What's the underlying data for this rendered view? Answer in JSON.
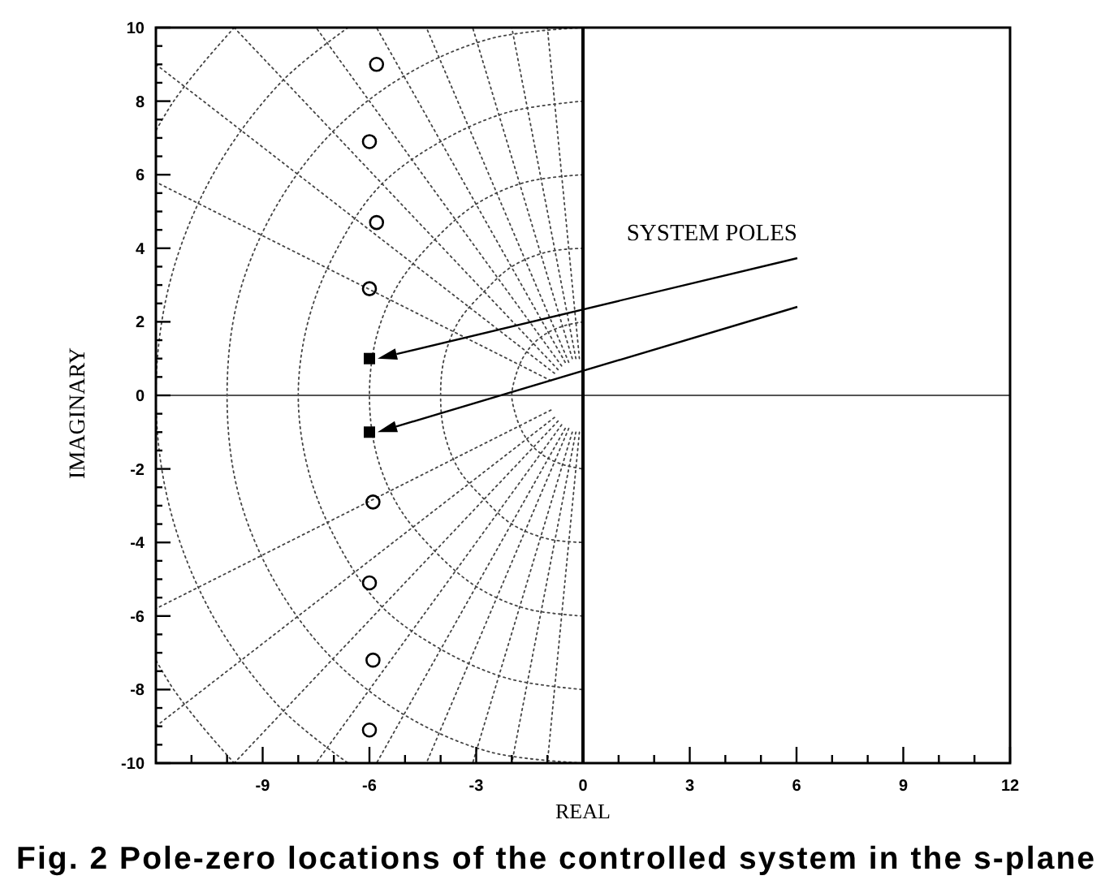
{
  "chart_data": {
    "type": "scatter",
    "xlabel": "REAL",
    "ylabel": "IMAGINARY",
    "annotations": [
      "Fig. 2 Pole-zero locations of the controlled system in the s-plane"
    ],
    "line_style": "dotted",
    "series": [
      {
        "type": "line",
        "color": "#444444",
        "x": [
          0,
          -0.5,
          -1.0,
          -1.4,
          -1.7,
          -1.9,
          -2,
          -1.9,
          -1.7,
          -1.4,
          -1.0,
          -0.5,
          0
        ],
        "values": [
          2,
          1.9,
          1.7,
          1.4,
          1.0,
          0.5,
          0,
          -0.5,
          -1.0,
          -1.4,
          -1.7,
          -1.9,
          -2
        ]
      },
      {
        "type": "line",
        "color": "#444444",
        "x": [
          0,
          -1.0,
          -2.0,
          -2.8,
          -3.5,
          -3.9,
          -4,
          -3.9,
          -3.5,
          -2.8,
          -2.0,
          -1.0,
          0
        ],
        "values": [
          4,
          3.9,
          3.5,
          2.8,
          2.0,
          1.0,
          0,
          -1.0,
          -2.0,
          -2.8,
          -3.5,
          -3.9,
          -4
        ]
      },
      {
        "type": "line",
        "color": "#444444",
        "x": [
          0,
          -1.6,
          -3.0,
          -4.2,
          -5.2,
          -5.8,
          -6,
          -5.8,
          -5.2,
          -4.2,
          -3.0,
          -1.6,
          0
        ],
        "values": [
          6,
          5.8,
          5.2,
          4.2,
          3.0,
          1.6,
          0,
          -1.6,
          -3.0,
          -4.2,
          -5.2,
          -5.8,
          -6
        ]
      },
      {
        "type": "line",
        "color": "#444444",
        "x": [
          0,
          -2.1,
          -4.0,
          -5.7,
          -6.9,
          -7.7,
          -8,
          -7.7,
          -6.9,
          -5.7,
          -4.0,
          -2.1,
          0
        ],
        "values": [
          8,
          7.7,
          6.9,
          5.7,
          4.0,
          2.1,
          0,
          -2.1,
          -4.0,
          -5.7,
          -6.9,
          -7.7,
          -8
        ]
      },
      {
        "type": "line",
        "color": "#444444",
        "x": [
          0,
          -2.6,
          -5.0,
          -7.1,
          -8.7,
          -9.7,
          -10,
          -9.7,
          -8.7,
          -7.1,
          -5.0,
          -2.6,
          0
        ],
        "values": [
          10,
          9.7,
          8.7,
          7.1,
          5.0,
          2.6,
          0,
          -2.6,
          -5.0,
          -7.1,
          -8.7,
          -9.7,
          -10
        ]
      },
      {
        "type": "line",
        "color": "#444444",
        "x": [
          -6.6,
          -8.5,
          -10.4,
          -11.6,
          -12,
          -11.6,
          -10.4,
          -8.5,
          -6.6
        ],
        "values": [
          10,
          8.5,
          6.0,
          3.1,
          0,
          -3.1,
          -6.0,
          -8.5,
          -10
        ]
      },
      {
        "type": "line",
        "color": "#444444",
        "x": [
          -9.8,
          -10.7,
          -11.5,
          -12
        ],
        "values": [
          10,
          9.0,
          8.0,
          7.2
        ]
      },
      {
        "type": "line",
        "color": "#444444",
        "x": [
          -9.8,
          -10.7,
          -11.5,
          -12
        ],
        "values": [
          -10,
          -9.0,
          -8.0,
          -7.2
        ]
      },
      {
        "type": "line",
        "color": "#444444",
        "x": [
          -0.1,
          -1.0
        ],
        "values": [
          1.0,
          10
        ]
      },
      {
        "type": "line",
        "color": "#444444",
        "x": [
          -0.2,
          -2.0
        ],
        "values": [
          1.0,
          10
        ]
      },
      {
        "type": "line",
        "color": "#444444",
        "x": [
          -0.3,
          -3.1
        ],
        "values": [
          1.0,
          10
        ]
      },
      {
        "type": "line",
        "color": "#444444",
        "x": [
          -0.4,
          -4.4
        ],
        "values": [
          0.9,
          10
        ]
      },
      {
        "type": "line",
        "color": "#444444",
        "x": [
          -0.5,
          -5.8
        ],
        "values": [
          0.9,
          10
        ]
      },
      {
        "type": "line",
        "color": "#444444",
        "x": [
          -0.6,
          -7.5
        ],
        "values": [
          0.8,
          10
        ]
      },
      {
        "type": "line",
        "color": "#444444",
        "x": [
          -0.7,
          -9.8
        ],
        "values": [
          0.7,
          10
        ]
      },
      {
        "type": "line",
        "color": "#444444",
        "x": [
          -0.8,
          -12
        ],
        "values": [
          0.6,
          9.0
        ]
      },
      {
        "type": "line",
        "color": "#444444",
        "x": [
          -0.9,
          -12
        ],
        "values": [
          0.4,
          5.8
        ]
      },
      {
        "type": "line",
        "color": "#444444",
        "x": [
          -0.1,
          -1.0
        ],
        "values": [
          -1.0,
          -10
        ]
      },
      {
        "type": "line",
        "color": "#444444",
        "x": [
          -0.2,
          -2.0
        ],
        "values": [
          -1.0,
          -10
        ]
      },
      {
        "type": "line",
        "color": "#444444",
        "x": [
          -0.3,
          -3.1
        ],
        "values": [
          -1.0,
          -10
        ]
      },
      {
        "type": "line",
        "color": "#444444",
        "x": [
          -0.4,
          -4.4
        ],
        "values": [
          -0.9,
          -10
        ]
      },
      {
        "type": "line",
        "color": "#444444",
        "x": [
          -0.5,
          -5.8
        ],
        "values": [
          -0.9,
          -10
        ]
      },
      {
        "type": "line",
        "color": "#444444",
        "x": [
          -0.6,
          -7.5
        ],
        "values": [
          -0.8,
          -10
        ]
      },
      {
        "type": "line",
        "color": "#444444",
        "x": [
          -0.7,
          -9.8
        ],
        "values": [
          -0.7,
          -10
        ]
      },
      {
        "type": "line",
        "color": "#444444",
        "x": [
          -0.8,
          -12
        ],
        "values": [
          -0.6,
          -9.0
        ]
      },
      {
        "type": "line",
        "color": "#444444",
        "x": [
          -0.9,
          -12
        ],
        "values": [
          -0.4,
          -5.8
        ]
      },
      {
        "marker": "circle",
        "color": "#000000",
        "x": [
          -5.8,
          -6.0,
          -5.8,
          -6.0,
          -5.9,
          -6.0,
          -5.9,
          -6.0
        ],
        "values": [
          9.0,
          6.9,
          4.7,
          2.9,
          -2.9,
          -5.1,
          -7.2,
          -9.1
        ]
      },
      {
        "name": "SYSTEM POLES",
        "marker": "square",
        "color": "#000000",
        "x": [
          -6.0,
          -6.0
        ],
        "values": [
          1.0,
          -1.0
        ]
      }
    ],
    "ref_lines": [
      {
        "axis": "y",
        "value": 0,
        "color": "#555555"
      },
      {
        "axis": "x",
        "value": 0,
        "color": "#000000"
      }
    ],
    "xlim": [
      -12,
      12
    ],
    "ylim": [
      -10,
      10
    ],
    "xticks": [
      {
        "value": -11,
        "label": null
      },
      {
        "value": -10,
        "label": null
      },
      -9,
      {
        "value": -8,
        "label": null
      },
      {
        "value": -7,
        "label": null
      },
      -6,
      {
        "value": -5,
        "label": null
      },
      {
        "value": -4,
        "label": null
      },
      -3,
      {
        "value": -2,
        "label": null
      },
      {
        "value": -1,
        "label": null
      },
      0,
      {
        "value": 1,
        "label": null
      },
      {
        "value": 2,
        "label": null
      },
      3,
      {
        "value": 4,
        "label": null
      },
      {
        "value": 5,
        "label": null
      },
      6,
      {
        "value": 7,
        "label": null
      },
      {
        "value": 8,
        "label": null
      },
      9,
      {
        "value": 10,
        "label": null
      },
      {
        "value": 11,
        "label": null
      },
      12
    ],
    "yticks": [
      -10,
      {
        "value": -9.5,
        "label": null
      },
      {
        "value": -9,
        "label": null
      },
      {
        "value": -8.5,
        "label": null
      },
      -8,
      {
        "value": -7.5,
        "label": null
      },
      {
        "value": -7,
        "label": null
      },
      {
        "value": -6.5,
        "label": null
      },
      -6,
      {
        "value": -5.5,
        "label": null
      },
      {
        "value": -5,
        "label": null
      },
      {
        "value": -4.5,
        "label": null
      },
      -4,
      {
        "value": -3.5,
        "label": null
      },
      {
        "value": -3,
        "label": null
      },
      {
        "value": -2.5,
        "label": null
      },
      -2,
      {
        "value": -1.5,
        "label": null
      },
      {
        "value": -1,
        "label": null
      },
      {
        "value": -0.5,
        "label": null
      },
      0,
      {
        "value": 0.5,
        "label": null
      },
      {
        "value": 1,
        "label": null
      },
      {
        "value": 1.5,
        "label": null
      },
      2,
      {
        "value": 2.5,
        "label": null
      },
      {
        "value": 3,
        "label": null
      },
      {
        "value": 3.5,
        "label": null
      },
      4,
      {
        "value": 4.5,
        "label": null
      },
      {
        "value": 5,
        "label": null
      },
      {
        "value": 5.5,
        "label": null
      },
      6,
      {
        "value": 6.5,
        "label": null
      },
      {
        "value": 7,
        "label": null
      },
      {
        "value": 7.5,
        "label": null
      },
      8,
      {
        "value": 8.5,
        "label": null
      },
      {
        "value": 9,
        "label": null
      },
      {
        "value": 9.5,
        "label": null
      },
      10
    ]
  }
}
